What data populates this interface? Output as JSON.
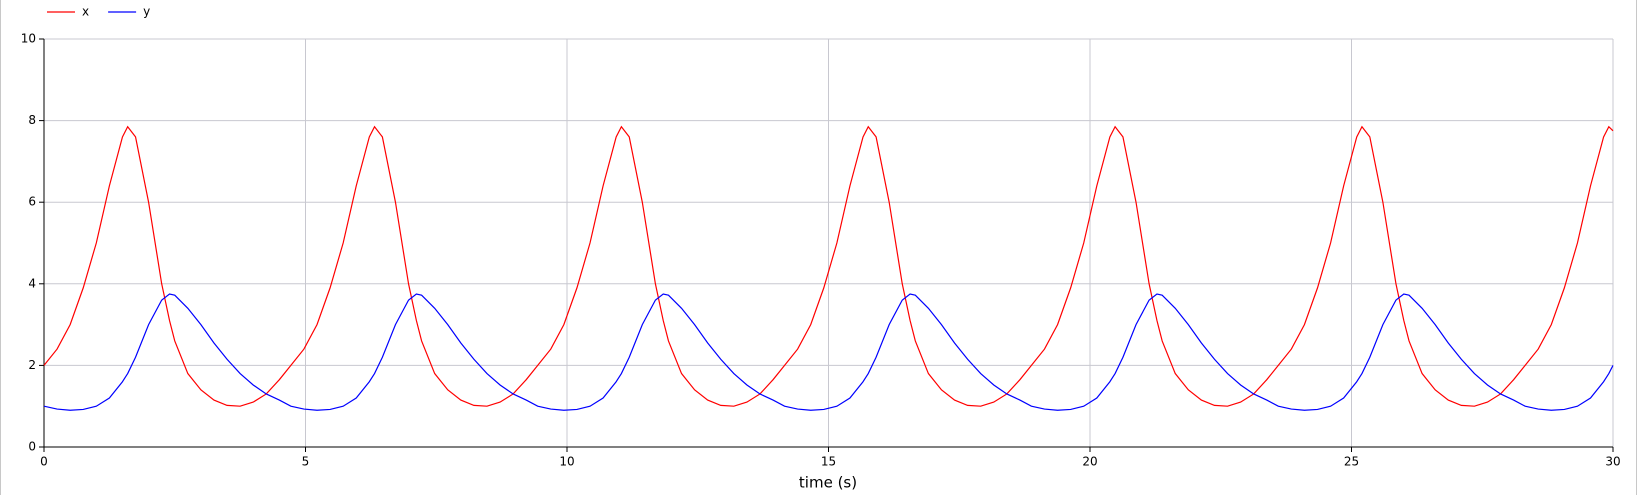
{
  "chart_data": {
    "type": "line",
    "xlabel": "time (s)",
    "x": [
      0,
      0.25,
      0.5,
      0.75,
      1,
      1.25,
      1.5,
      1.6,
      1.75,
      2,
      2.25,
      2.4,
      2.5,
      2.75,
      3,
      3.25,
      3.5,
      3.75,
      4,
      4.25,
      4.5,
      4.72,
      4.97,
      5.22,
      5.47,
      5.72,
      5.97,
      6.22,
      6.32,
      6.47,
      6.72,
      6.97,
      7.12,
      7.22,
      7.47,
      7.72,
      7.97,
      8.22,
      8.47,
      8.72,
      8.97,
      9.22,
      9.44,
      9.69,
      9.94,
      10.19,
      10.44,
      10.69,
      10.94,
      11.04,
      11.19,
      11.44,
      11.69,
      11.84,
      11.94,
      12.19,
      12.44,
      12.69,
      12.94,
      13.19,
      13.44,
      13.69,
      13.94,
      14.16,
      14.41,
      14.66,
      14.91,
      15.16,
      15.41,
      15.66,
      15.76,
      15.91,
      16.16,
      16.41,
      16.56,
      16.66,
      16.91,
      17.16,
      17.41,
      17.66,
      17.91,
      18.16,
      18.41,
      18.66,
      18.88,
      19.13,
      19.38,
      19.63,
      19.88,
      20.13,
      20.38,
      20.48,
      20.63,
      20.88,
      21.13,
      21.28,
      21.38,
      21.63,
      21.88,
      22.13,
      22.38,
      22.63,
      22.88,
      23.13,
      23.38,
      23.6,
      23.85,
      24.1,
      24.35,
      24.6,
      24.85,
      25.1,
      25.2,
      25.35,
      25.6,
      25.85,
      26,
      26.1,
      26.35,
      26.6,
      26.85,
      27.1,
      27.35,
      27.6,
      27.85,
      28.1,
      28.32,
      28.57,
      28.82,
      29.07,
      29.32,
      29.57,
      29.82,
      29.92,
      30
    ],
    "series": [
      {
        "name": "x",
        "color": "#ff0000",
        "values": [
          2,
          2.4,
          3,
          3.9,
          5,
          6.4,
          7.6,
          7.85,
          7.6,
          6,
          4,
          3.1,
          2.6,
          1.8,
          1.4,
          1.15,
          1.02,
          1,
          1.1,
          1.3,
          1.65,
          2,
          2.4,
          3,
          3.9,
          5,
          6.4,
          7.6,
          7.85,
          7.6,
          6,
          4,
          3.1,
          2.6,
          1.8,
          1.4,
          1.15,
          1.02,
          1,
          1.1,
          1.3,
          1.65,
          2,
          2.4,
          3,
          3.9,
          5,
          6.4,
          7.6,
          7.85,
          7.6,
          6,
          4,
          3.1,
          2.6,
          1.8,
          1.4,
          1.15,
          1.02,
          1,
          1.1,
          1.3,
          1.65,
          2,
          2.4,
          3,
          3.9,
          5,
          6.4,
          7.6,
          7.85,
          7.6,
          6,
          4,
          3.1,
          2.6,
          1.8,
          1.4,
          1.15,
          1.02,
          1,
          1.1,
          1.3,
          1.65,
          2,
          2.4,
          3,
          3.9,
          5,
          6.4,
          7.6,
          7.85,
          7.6,
          6,
          4,
          3.1,
          2.6,
          1.8,
          1.4,
          1.15,
          1.02,
          1,
          1.1,
          1.3,
          1.65,
          2,
          2.4,
          3,
          3.9,
          5,
          6.4,
          7.6,
          7.85,
          7.6,
          6,
          4,
          3.1,
          2.6,
          1.8,
          1.4,
          1.15,
          1.02,
          1,
          1.1,
          1.3,
          1.65,
          2,
          2.4,
          3,
          3.9,
          5,
          6.4,
          7.6,
          7.85,
          7.75
        ]
      },
      {
        "name": "y",
        "color": "#0000ff",
        "values": [
          1,
          0.93,
          0.9,
          0.92,
          1,
          1.2,
          1.6,
          1.8,
          2.2,
          3,
          3.6,
          3.75,
          3.72,
          3.4,
          3,
          2.55,
          2.15,
          1.8,
          1.52,
          1.3,
          1.15,
          1,
          0.93,
          0.9,
          0.92,
          1,
          1.2,
          1.6,
          1.8,
          2.2,
          3,
          3.6,
          3.75,
          3.72,
          3.4,
          3,
          2.55,
          2.15,
          1.8,
          1.52,
          1.3,
          1.15,
          1,
          0.93,
          0.9,
          0.92,
          1,
          1.2,
          1.6,
          1.8,
          2.2,
          3,
          3.6,
          3.75,
          3.72,
          3.4,
          3,
          2.55,
          2.15,
          1.8,
          1.52,
          1.3,
          1.15,
          1,
          0.93,
          0.9,
          0.92,
          1,
          1.2,
          1.6,
          1.8,
          2.2,
          3,
          3.6,
          3.75,
          3.72,
          3.4,
          3,
          2.55,
          2.15,
          1.8,
          1.52,
          1.3,
          1.15,
          1,
          0.93,
          0.9,
          0.92,
          1,
          1.2,
          1.6,
          1.8,
          2.2,
          3,
          3.6,
          3.75,
          3.72,
          3.4,
          3,
          2.55,
          2.15,
          1.8,
          1.52,
          1.3,
          1.15,
          1,
          0.93,
          0.9,
          0.92,
          1,
          1.2,
          1.6,
          1.8,
          2.2,
          3,
          3.6,
          3.75,
          3.72,
          3.4,
          3,
          2.55,
          2.15,
          1.8,
          1.52,
          1.3,
          1.15,
          1,
          0.93,
          0.9,
          0.92,
          1,
          1.2,
          1.6,
          1.8,
          2.0
        ]
      }
    ],
    "xlim": [
      0,
      30
    ],
    "xticks": [
      0,
      5,
      10,
      15,
      20,
      25,
      30
    ],
    "ylim": [
      0,
      10
    ],
    "yticks": [
      0,
      2,
      4,
      6,
      8,
      10
    ],
    "grid": true,
    "legend": "top-left"
  }
}
